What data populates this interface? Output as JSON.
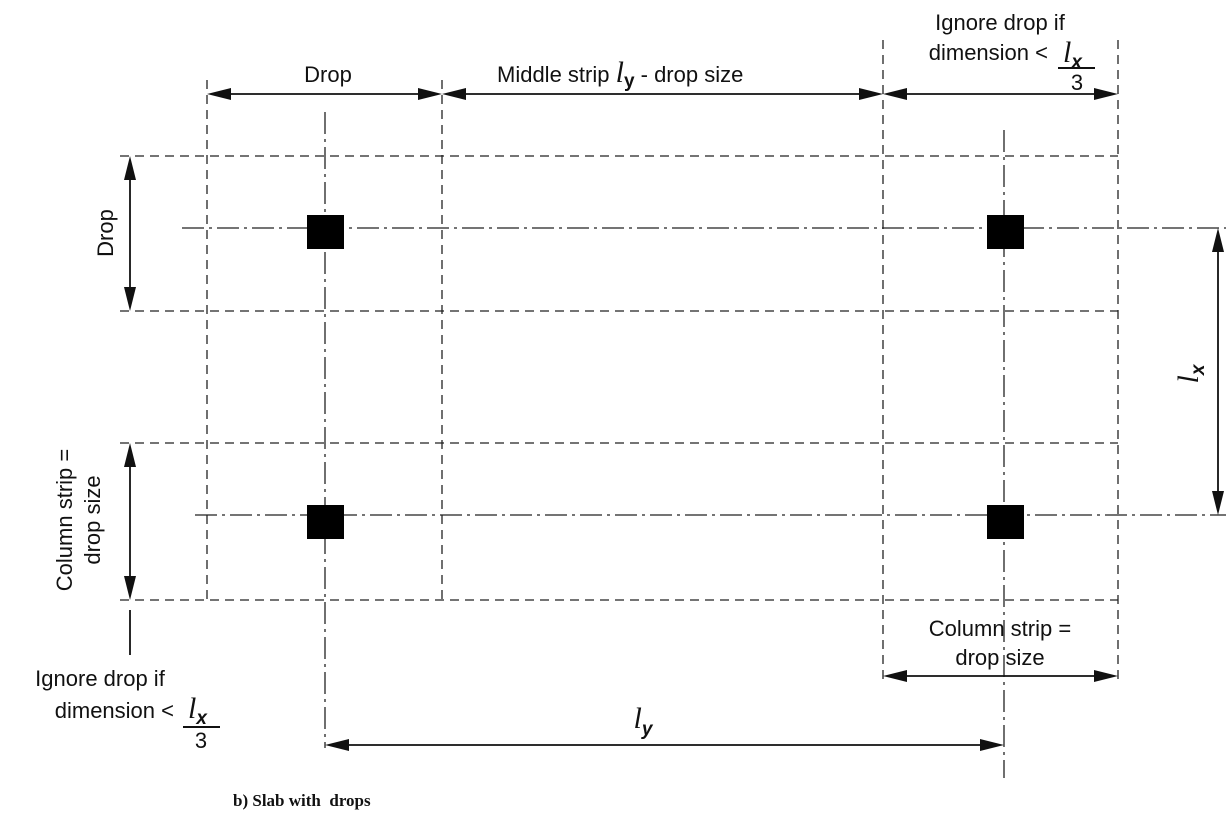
{
  "labels": {
    "drop_top": "Drop",
    "middle_strip_prefix": "Middle strip ",
    "middle_strip_symbol": "l",
    "middle_strip_sub": "y",
    "middle_strip_suffix": " - drop size",
    "ignore_top_line1": "Ignore drop if",
    "ignore_top_line2": "dimension <",
    "drop_left": "Drop",
    "column_strip_left_line1": "Column strip =",
    "column_strip_left_line2": "drop size",
    "lx_symbol": "l",
    "lx_sub": "x",
    "column_strip_right_line1": "Column strip =",
    "column_strip_right_line2": "drop size",
    "ignore_bottom_line1": "Ignore drop if",
    "ignore_bottom_line2": "dimension <",
    "ly_symbol": "l",
    "ly_sub": "y",
    "fraction_numerator_symbol": "l",
    "fraction_numerator_sub": "x",
    "fraction_denominator": "3",
    "caption": "b) Slab with  drops"
  }
}
